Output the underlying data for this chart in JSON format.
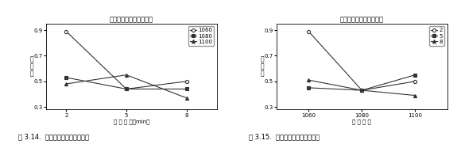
{
  "chart1": {
    "title": "退火時間對屈強比的影響",
    "xlabel": "退 火 時 間（min）",
    "ylabel_chars": [
      "屈",
      "強",
      "比"
    ],
    "xticks": [
      2,
      5,
      8
    ],
    "yticks": [
      0.3,
      0.5,
      0.7,
      0.9
    ],
    "ylim": [
      0.28,
      0.95
    ],
    "xlim": [
      1,
      9.5
    ],
    "series": [
      {
        "label": "1060",
        "x": [
          2,
          5,
          8
        ],
        "y": [
          0.89,
          0.44,
          0.5
        ],
        "marker": "o",
        "color": "#333333"
      },
      {
        "label": "1080",
        "x": [
          2,
          5,
          8
        ],
        "y": [
          0.53,
          0.44,
          0.44
        ],
        "marker": "s",
        "color": "#333333"
      },
      {
        "label": "1100",
        "x": [
          2,
          5,
          8
        ],
        "y": [
          0.48,
          0.55,
          0.37
        ],
        "marker": "^",
        "color": "#333333"
      }
    ]
  },
  "chart2": {
    "title": "退火溫度對屈強比的影響",
    "xlabel": "退 火 溫 度",
    "ylabel_chars": [
      "屈",
      "強",
      "比"
    ],
    "xticks": [
      1060,
      1080,
      1100
    ],
    "yticks": [
      0.3,
      0.5,
      0.7,
      0.9
    ],
    "ylim": [
      0.28,
      0.95
    ],
    "xlim": [
      1048,
      1112
    ],
    "series": [
      {
        "label": "2",
        "x": [
          1060,
          1080,
          1100
        ],
        "y": [
          0.89,
          0.43,
          0.5
        ],
        "marker": "o",
        "color": "#333333"
      },
      {
        "label": "5",
        "x": [
          1060,
          1080,
          1100
        ],
        "y": [
          0.45,
          0.43,
          0.55
        ],
        "marker": "s",
        "color": "#333333"
      },
      {
        "label": "8",
        "x": [
          1060,
          1080,
          1100
        ],
        "y": [
          0.51,
          0.43,
          0.39
        ],
        "marker": "^",
        "color": "#333333"
      }
    ]
  },
  "caption1": "圖 3.14.  退火時間對屈強比的影響",
  "caption2": "圖 3.15.  退火溫度對屈強比的影響",
  "bg_color": "#ffffff"
}
